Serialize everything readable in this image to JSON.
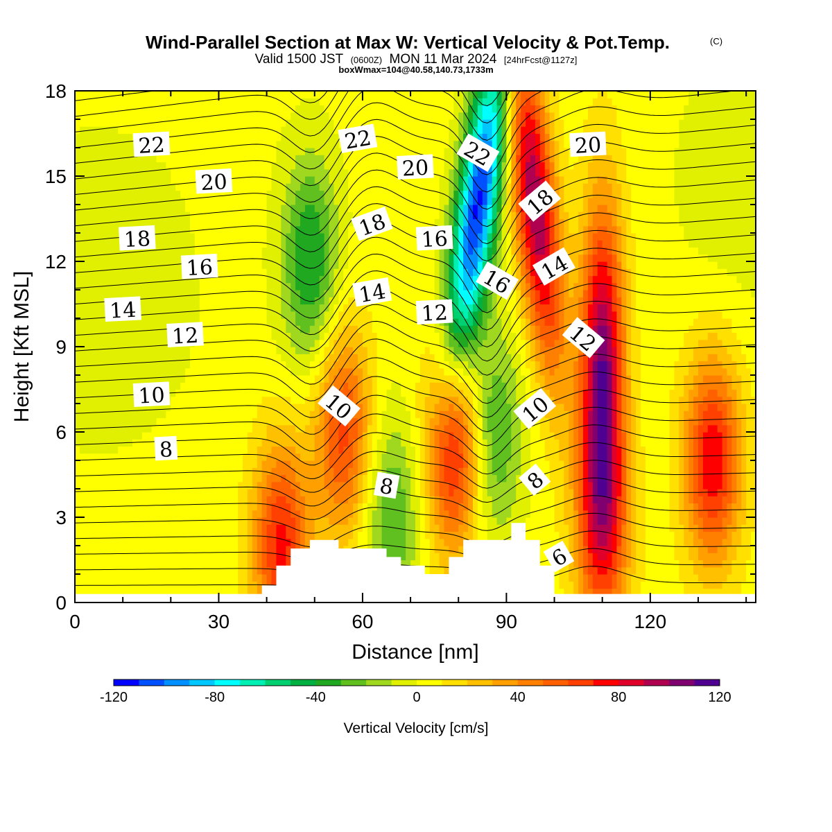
{
  "chart_data": {
    "type": "heatmap",
    "title": "Wind-Parallel Section at Max W: Vertical Velocity & Pot.Temp.",
    "title_mark": "(C)",
    "subtitle": {
      "main": "Valid 1500 JST",
      "utc": "(0600Z)",
      "date": "MON 11 Mar 2024",
      "forecast": "[24hrFcst@1127z]"
    },
    "box_info": "boxWmax=104@40.58,140.73,1733m",
    "xlabel": "Distance [nm]",
    "ylabel": "Height [Kft MSL]",
    "xlim": [
      0,
      142
    ],
    "ylim": [
      0,
      18
    ],
    "xticks": [
      "0",
      "30",
      "60",
      "90",
      "120"
    ],
    "yticks": [
      "0",
      "3",
      "6",
      "9",
      "12",
      "15",
      "18"
    ],
    "grid": false,
    "colorbar": {
      "label": "Vertical Velocity [cm/s]",
      "range": [
        -120,
        120
      ],
      "step": 10,
      "tick_labels": [
        "-120",
        "-80",
        "-40",
        "0",
        "40",
        "80",
        "120"
      ],
      "colors": [
        "#0000ff",
        "#0050ff",
        "#0090ff",
        "#00c8ff",
        "#00ffff",
        "#00f0b4",
        "#00d070",
        "#00b040",
        "#20a820",
        "#60c020",
        "#a0d820",
        "#e0f000",
        "#ffff00",
        "#ffe000",
        "#ffc000",
        "#ffa000",
        "#ff8000",
        "#ff6000",
        "#ff4000",
        "#ff0000",
        "#e0002a",
        "#b00050",
        "#800070",
        "#500090"
      ]
    },
    "vertical_velocity_features": [
      {
        "x": 49,
        "z": 12,
        "w": -45
      },
      {
        "x": 66,
        "z": 3,
        "w": -35
      },
      {
        "x": 84,
        "z": 14,
        "w": -115
      },
      {
        "x": 87,
        "z": 6,
        "w": -40
      },
      {
        "x": 96,
        "z": 14,
        "w": 95
      },
      {
        "x": 79,
        "z": 5.5,
        "w": 80
      },
      {
        "x": 110,
        "z": 8,
        "w": 104
      },
      {
        "x": 133,
        "z": 5,
        "w": 75
      },
      {
        "x": 43,
        "z": 2,
        "w": 70
      },
      {
        "x": 56,
        "z": 6,
        "w": 60
      },
      {
        "x": 110,
        "z": 2.5,
        "w": 50
      }
    ],
    "terrain_profile": {
      "x": [
        39,
        39,
        42,
        42,
        45,
        45,
        49,
        49,
        55,
        55,
        65,
        65,
        68,
        68,
        73,
        73,
        78,
        78,
        81,
        81,
        91,
        91,
        94,
        94,
        97,
        97,
        100,
        100
      ],
      "z": [
        0.3,
        0.6,
        0.6,
        1.3,
        1.3,
        1.9,
        1.9,
        2.2,
        2.2,
        1.9,
        1.9,
        1.6,
        1.6,
        1.3,
        1.3,
        1.0,
        1.0,
        1.6,
        1.6,
        2.2,
        2.2,
        2.8,
        2.8,
        2.2,
        2.2,
        1.3,
        1.3,
        0.6
      ]
    },
    "theta_contour_labels": [
      {
        "text": "22",
        "x": 16,
        "z": 16.1
      },
      {
        "text": "20",
        "x": 29,
        "z": 14.8
      },
      {
        "text": "18",
        "x": 13,
        "z": 12.8
      },
      {
        "text": "16",
        "x": 26,
        "z": 11.8
      },
      {
        "text": "14",
        "x": 10,
        "z": 10.3
      },
      {
        "text": "12",
        "x": 23,
        "z": 9.4
      },
      {
        "text": "10",
        "x": 16,
        "z": 7.3
      },
      {
        "text": "8",
        "x": 19,
        "z": 5.4
      },
      {
        "text": "22",
        "x": 59,
        "z": 16.3
      },
      {
        "text": "20",
        "x": 71,
        "z": 15.3
      },
      {
        "text": "18",
        "x": 62,
        "z": 13.3
      },
      {
        "text": "16",
        "x": 75,
        "z": 12.8
      },
      {
        "text": "14",
        "x": 62,
        "z": 10.9
      },
      {
        "text": "12",
        "x": 75,
        "z": 10.2
      },
      {
        "text": "10",
        "x": 55,
        "z": 6.9
      },
      {
        "text": "8",
        "x": 65,
        "z": 4.1
      },
      {
        "text": "22",
        "x": 84,
        "z": 15.8
      },
      {
        "text": "16",
        "x": 88,
        "z": 11.3
      },
      {
        "text": "18",
        "x": 97,
        "z": 14.1
      },
      {
        "text": "14",
        "x": 100,
        "z": 11.8
      },
      {
        "text": "12",
        "x": 106,
        "z": 9.3
      },
      {
        "text": "10",
        "x": 96,
        "z": 6.8
      },
      {
        "text": "8",
        "x": 96,
        "z": 4.3
      },
      {
        "text": "6",
        "x": 101,
        "z": 1.6
      },
      {
        "text": "20",
        "x": 107,
        "z": 16.1
      }
    ]
  }
}
